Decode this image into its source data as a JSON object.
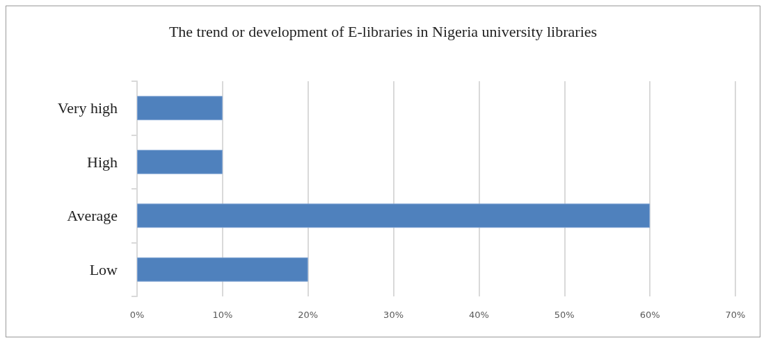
{
  "chart_data": {
    "type": "bar",
    "orientation": "horizontal",
    "title": "The trend or development of E-libraries in Nigeria university libraries",
    "categories": [
      "Very high",
      "High",
      "Average",
      "Low"
    ],
    "values": [
      10,
      10,
      60,
      20
    ],
    "color": "#4f81bd",
    "xlim": [
      0,
      70
    ],
    "xticks": [
      {
        "value": 0,
        "label": "0%"
      },
      {
        "value": 10,
        "label": "10%"
      },
      {
        "value": 20,
        "label": "20%"
      },
      {
        "value": 30,
        "label": "30%"
      },
      {
        "value": 40,
        "label": "40%"
      },
      {
        "value": 50,
        "label": "50%"
      },
      {
        "value": 60,
        "label": "60%"
      },
      {
        "value": 70,
        "label": "70%"
      }
    ],
    "grid": "x"
  }
}
